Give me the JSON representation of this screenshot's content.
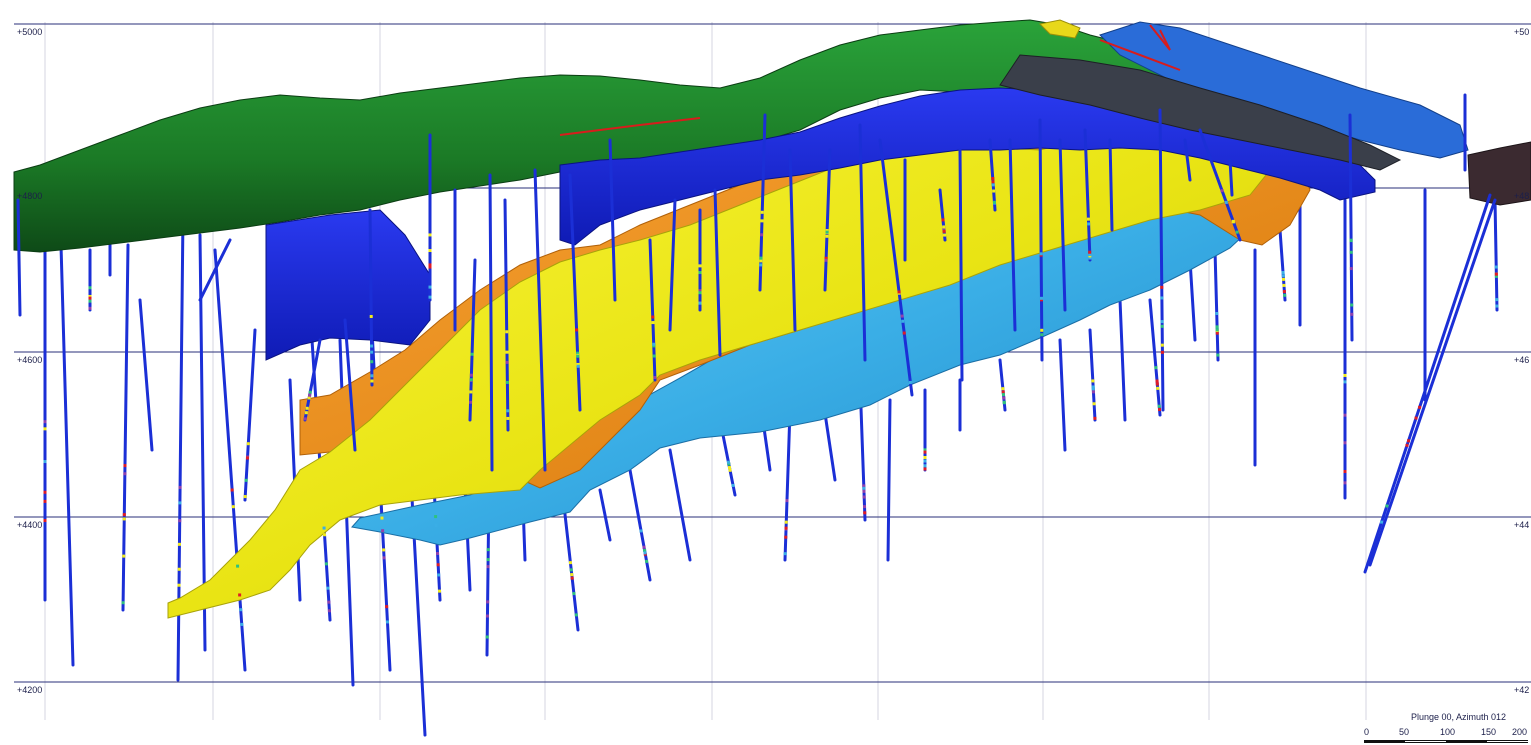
{
  "view": {
    "elevation_labels_left": [
      "+5000",
      "+4800",
      "+4600",
      "+4400",
      "+4200"
    ],
    "elevation_labels_right": [
      "+50",
      "+48",
      "+46",
      "+44",
      "+42"
    ],
    "orientation_caption": "Plunge 00, Azimuth 012",
    "scale_labels": [
      "0",
      "50",
      "100",
      "150",
      "200"
    ]
  },
  "colors": {
    "gridline": "#2a2f7a",
    "topography": "#1f7f2a",
    "upper_block": "#1726d8",
    "upper_shell": "#f2961c",
    "mid_shell": "#f1ec1c",
    "lower_shell": "#3aaee6",
    "drillhole": "#1b2fd6",
    "background": "#ffffff"
  }
}
